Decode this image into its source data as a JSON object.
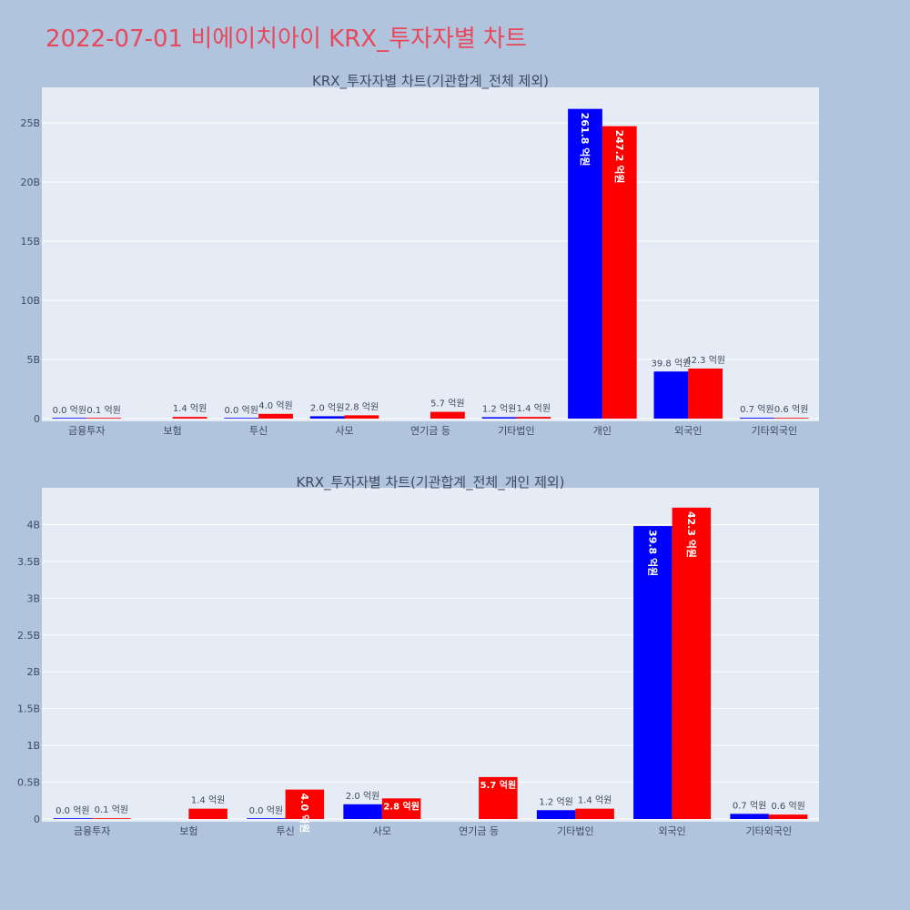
{
  "page": {
    "title": "2022-07-01 비에이치아이 KRX_투자자별 차트"
  },
  "chart_data": [
    {
      "type": "bar",
      "title": "KRX_투자자별 차트(기관합계_전체 제외)",
      "categories": [
        "금융투자",
        "보험",
        "투신",
        "사모",
        "연기금 등",
        "기타법인",
        "개인",
        "외국인",
        "기타외국인"
      ],
      "series": [
        {
          "color": "#0000ff",
          "values": [
            0.0,
            null,
            0.0,
            0.2,
            null,
            0.12,
            26.18,
            3.98,
            0.07
          ],
          "labels": [
            "0.0 억원",
            "",
            "0.0 억원",
            "2.0 억원",
            "",
            "1.2 억원",
            "261.8 억원",
            "39.8 억원",
            "0.7 억원"
          ]
        },
        {
          "color": "#ff0000",
          "values": [
            0.01,
            0.14,
            0.4,
            0.28,
            0.57,
            0.14,
            24.72,
            4.23,
            0.06
          ],
          "labels": [
            "0.1 억원",
            "1.4 억원",
            "4.0 억원",
            "2.8 억원",
            "5.7 억원",
            "1.4 억원",
            "247.2 억원",
            "42.3 억원",
            "0.6 억원"
          ]
        }
      ],
      "ylim": [
        0,
        28
      ],
      "yticks": [
        0,
        5,
        10,
        15,
        20,
        25
      ],
      "ytick_labels": [
        "0",
        "5B",
        "10B",
        "15B",
        "20B",
        "25B"
      ],
      "grid": true
    },
    {
      "type": "bar",
      "title": "KRX_투자자별 차트(기관합계_전체_개인 제외)",
      "categories": [
        "금융투자",
        "보험",
        "투신",
        "사모",
        "연기금 등",
        "기타법인",
        "외국인",
        "기타외국인"
      ],
      "series": [
        {
          "color": "#0000ff",
          "values": [
            0.0,
            null,
            0.0,
            0.2,
            null,
            0.12,
            3.98,
            0.07
          ],
          "labels": [
            "0.0 억원",
            "",
            "0.0 억원",
            "2.0 억원",
            "",
            "1.2 억원",
            "39.8 억원",
            "0.7 억원"
          ]
        },
        {
          "color": "#ff0000",
          "values": [
            0.01,
            0.14,
            0.4,
            0.28,
            0.57,
            0.14,
            4.23,
            0.06
          ],
          "labels": [
            "0.1 억원",
            "1.4 억원",
            "4.0 억원",
            "2.8 억원",
            "5.7 억원",
            "1.4 억원",
            "42.3 억원",
            "0.6 억원"
          ]
        }
      ],
      "ylim": [
        0,
        4.5
      ],
      "yticks": [
        0,
        0.5,
        1,
        1.5,
        2,
        2.5,
        3,
        3.5,
        4
      ],
      "ytick_labels": [
        "0",
        "0.5B",
        "1B",
        "1.5B",
        "2B",
        "2.5B",
        "3B",
        "3.5B",
        "4B"
      ],
      "grid": true
    }
  ]
}
